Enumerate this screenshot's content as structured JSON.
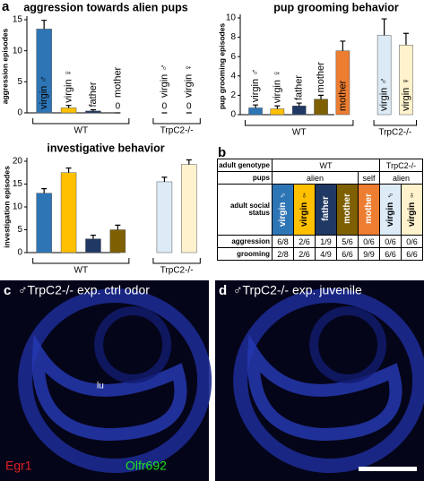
{
  "chart_data": [
    {
      "type": "bar",
      "panel_label": "a",
      "title": "aggression towards alien pups",
      "y_label": "aggression episodes",
      "categories": [
        "virgin ♂",
        "virgin ♀",
        "father",
        "mother",
        "virgin ♂",
        "virgin ♀"
      ],
      "values": [
        13.5,
        0.8,
        0.3,
        0,
        0,
        0
      ],
      "errors": [
        1.4,
        0.4,
        0.2,
        0,
        0,
        0
      ],
      "value_labels": [
        null,
        null,
        null,
        "0",
        "0",
        "0"
      ],
      "colors": [
        "#2e75b6",
        "#ffc000",
        "#1f3864",
        "#7f6000",
        "#ddebf7",
        "#fff2cc"
      ],
      "groups": [
        {
          "label": "WT",
          "count": 4
        },
        {
          "label": "TrpC2-/-",
          "count": 2
        }
      ],
      "ylim": [
        0,
        15
      ],
      "yticks": [
        0,
        5,
        10,
        15
      ]
    },
    {
      "type": "bar",
      "title": "pup grooming behavior",
      "y_label": "pup grooming episodes",
      "categories": [
        "virgin ♂",
        "virgin ♀",
        "father",
        "mother",
        "mother",
        "virgin ♂",
        "virgin ♀"
      ],
      "values": [
        0.7,
        0.6,
        0.9,
        1.6,
        6.6,
        8.2,
        7.2
      ],
      "errors": [
        0.3,
        0.3,
        0.3,
        0.4,
        1.0,
        1.7,
        1.2
      ],
      "colors": [
        "#2e75b6",
        "#ffc000",
        "#1f3864",
        "#7f6000",
        "#ed7d31",
        "#ddebf7",
        "#fff2cc"
      ],
      "groups": [
        {
          "label": "WT",
          "count": 5
        },
        {
          "label": "TrpC2-/-",
          "count": 2
        }
      ],
      "ylim": [
        0,
        10
      ],
      "yticks": [
        0,
        2,
        4,
        6,
        8,
        10
      ]
    },
    {
      "type": "bar",
      "title": "investigative behavior",
      "y_label": "investigation episodes",
      "categories": [
        null,
        null,
        null,
        null,
        null,
        null
      ],
      "values": [
        13,
        17.5,
        3,
        5,
        15.5,
        19.3
      ],
      "errors": [
        1,
        1,
        0.8,
        1,
        1,
        1
      ],
      "colors": [
        "#2e75b6",
        "#ffc000",
        "#1f3864",
        "#7f6000",
        "#ddebf7",
        "#fff2cc"
      ],
      "groups": [
        {
          "label": "WT",
          "count": 4
        },
        {
          "label": "TrpC2-/-",
          "count": 2
        }
      ],
      "ylim": [
        0,
        20
      ],
      "yticks": [
        0,
        5,
        10,
        15,
        20
      ]
    }
  ],
  "table": {
    "panel_label": "b",
    "row_headers": [
      "adult genotype",
      "pups",
      "adult social status",
      "aggression",
      "grooming"
    ],
    "genotype": [
      {
        "text": "WT",
        "span": 5
      },
      {
        "text": "TrpC2-/-",
        "span": 2
      }
    ],
    "pups": [
      {
        "text": "alien",
        "span": 4
      },
      {
        "text": "self",
        "span": 1
      },
      {
        "text": "alien",
        "span": 2
      }
    ],
    "status": [
      "virgin ♂",
      "virgin ♀",
      "father",
      "mother",
      "mother",
      "virgin ♂",
      "virgin ♀"
    ],
    "status_colors": [
      "#2e75b6",
      "#ffc000",
      "#1f3864",
      "#7f6000",
      "#ed7d31",
      "#ddebf7",
      "#fff2cc"
    ],
    "rows": [
      [
        "6/8",
        "2/6",
        "1/9",
        "5/6",
        "0/6",
        "0/6",
        "0/6"
      ],
      [
        "2/8",
        "2/6",
        "4/9",
        "6/6",
        "9/9",
        "6/6",
        "6/6"
      ]
    ]
  },
  "images": [
    {
      "panel_label": "c",
      "title": "♂TrpC2-/- exp. ctrl odor",
      "annotation": "lu",
      "stain_red": "Egr1",
      "stain_green": "Olfr692"
    },
    {
      "panel_label": "d",
      "title": "♂TrpC2-/- exp. juvenile"
    }
  ]
}
